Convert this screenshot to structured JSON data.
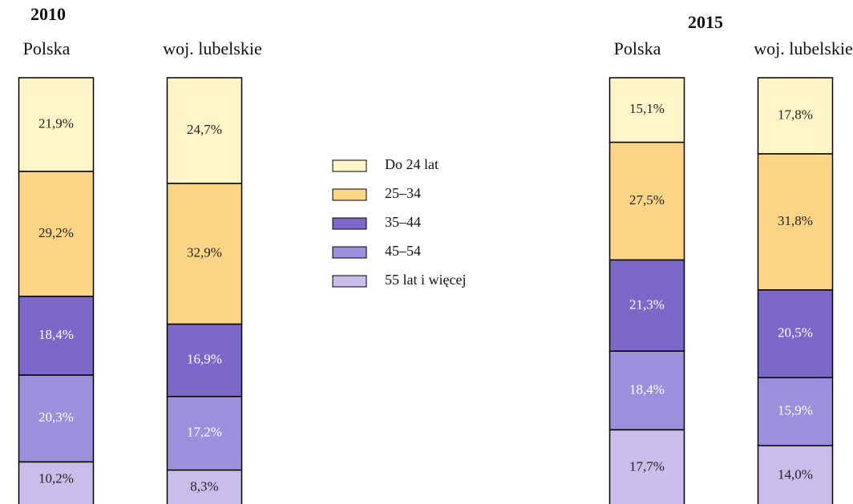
{
  "chart_data": {
    "type": "bar",
    "stacked": true,
    "group_titles": [
      "2010",
      "2015"
    ],
    "categories": [
      "Polska",
      "woj. lubelskie",
      "Polska",
      "woj. lubelskie"
    ],
    "series": [
      {
        "name": "Do 24 lat",
        "color": "#fff5c8",
        "label_color": "#222222",
        "values": [
          21.9,
          24.7,
          15.1,
          17.8
        ],
        "value_labels": [
          "21,9%",
          "24,7%",
          "15,1%",
          "17,8%"
        ]
      },
      {
        "name": "25–34",
        "color": "#fcd485",
        "label_color": "#222222",
        "values": [
          29.2,
          32.9,
          27.5,
          31.8
        ],
        "value_labels": [
          "29,2%",
          "32,9%",
          "27,5%",
          "31,8%"
        ]
      },
      {
        "name": "35–44",
        "color": "#7b68c8",
        "label_color": "#ffffff",
        "values": [
          18.4,
          16.9,
          21.3,
          20.5
        ],
        "value_labels": [
          "18,4%",
          "16,9%",
          "21,3%",
          "20,5%"
        ]
      },
      {
        "name": "45–54",
        "color": "#9c8fdc",
        "label_color": "#ffffff",
        "values": [
          20.3,
          17.2,
          18.4,
          15.9
        ],
        "value_labels": [
          "20,3%",
          "17,2%",
          "18,4%",
          "15,9%"
        ]
      },
      {
        "name": "55 lat i więcej",
        "color": "#cbbde9",
        "label_color": "#222222",
        "values": [
          10.2,
          8.3,
          17.7,
          14.0
        ],
        "value_labels": [
          "10,2%",
          "8,3%",
          "17,7%",
          "14,0%"
        ]
      }
    ]
  }
}
